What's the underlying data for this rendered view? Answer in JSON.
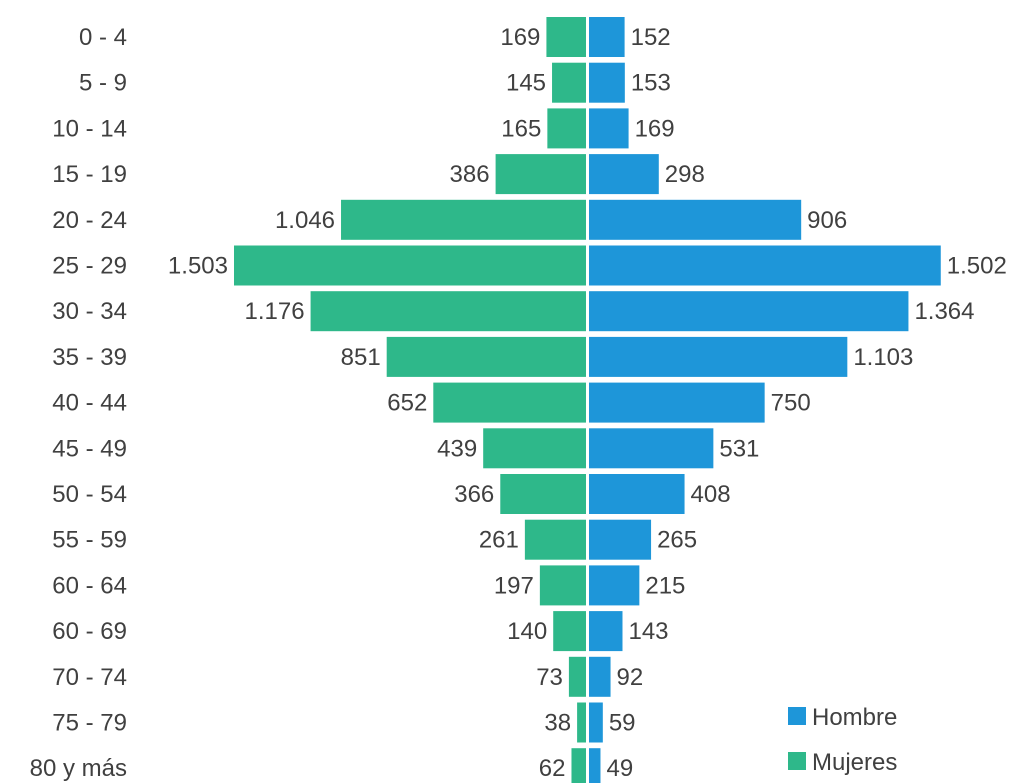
{
  "chart_data": {
    "type": "bar",
    "orientation": "horizontal",
    "layout": "population-pyramid",
    "categories": [
      "0 - 4",
      "5 - 9",
      "10 - 14",
      "15 - 19",
      "20 - 24",
      "25 - 29",
      "30 - 34",
      "35 - 39",
      "40 - 44",
      "45 - 49",
      "50 - 54",
      "55 - 59",
      "60 - 64",
      "60 - 69",
      "70 - 74",
      "75 - 79",
      "80  y más"
    ],
    "series": [
      {
        "name": "Mujeres",
        "color": "#2eb88a",
        "side": "left",
        "values": [
          169,
          145,
          165,
          386,
          1046,
          1503,
          1176,
          851,
          652,
          439,
          366,
          261,
          197,
          140,
          73,
          38,
          62
        ],
        "labels": [
          "169",
          "145",
          "165",
          "386",
          "1.046",
          "1.503",
          "1.176",
          "851",
          "652",
          "439",
          "366",
          "261",
          "197",
          "140",
          "73",
          "38",
          "62"
        ]
      },
      {
        "name": "Hombre",
        "color": "#1e96d9",
        "side": "right",
        "values": [
          152,
          153,
          169,
          298,
          906,
          1502,
          1364,
          1103,
          750,
          531,
          408,
          265,
          215,
          143,
          92,
          59,
          49
        ],
        "labels": [
          "152",
          "153",
          "169",
          "298",
          "906",
          "1.502",
          "1.364",
          "1.103",
          "750",
          "531",
          "408",
          "265",
          "215",
          "143",
          "92",
          "59",
          "49"
        ]
      }
    ],
    "legend": {
      "placement": "bottom-right",
      "entries": [
        {
          "label": "Hombre",
          "color": "#1e96d9"
        },
        {
          "label": "Mujeres",
          "color": "#2eb88a"
        }
      ]
    },
    "grid": false
  }
}
